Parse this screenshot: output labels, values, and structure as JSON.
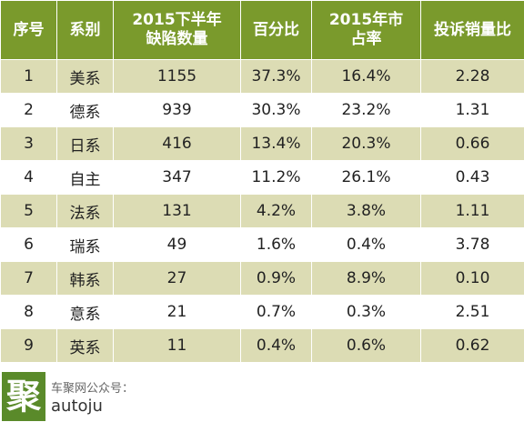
{
  "headers": [
    "序号",
    "系别",
    "2015下半年缺陷数量",
    "百分比",
    "2015年市占率",
    "投诉销量比"
  ],
  "rows": [
    [
      "1",
      "美系",
      "1155",
      "37.3%",
      "16.4%",
      "2.28"
    ],
    [
      "2",
      "德系",
      "939",
      "30.3%",
      "23.2%",
      "1.31"
    ],
    [
      "3",
      "日系",
      "416",
      "13.4%",
      "20.3%",
      "0.66"
    ],
    [
      "4",
      "自主",
      "347",
      "11.2%",
      "26.1%",
      "0.43"
    ],
    [
      "5",
      "法系",
      "131",
      "4.2%",
      "3.8%",
      "1.11"
    ],
    [
      "6",
      "瑞系",
      "49",
      "1.6%",
      "0.4%",
      "3.78"
    ],
    [
      "7",
      "韩系",
      "27",
      "0.9%",
      "8.9%",
      "0.10"
    ],
    [
      "8",
      "意系",
      "21",
      "0.7%",
      "0.3%",
      "2.51"
    ],
    [
      "9",
      "英系",
      "11",
      "0.4%",
      "0.6%",
      "0.62"
    ]
  ],
  "footer": {
    "logo_char": "聚",
    "account_label": "车聚网公众号：",
    "account_id": "autoju"
  },
  "colors": {
    "header_bg": "#7a9a2c",
    "odd_row_bg": "#dcdcb4",
    "logo_bg": "#5a8a2a"
  }
}
